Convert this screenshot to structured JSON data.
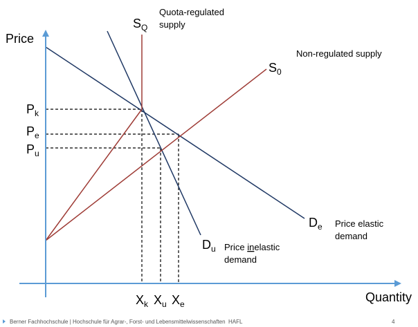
{
  "axes": {
    "y_label": "Price",
    "x_label": "Quantity"
  },
  "prices": [
    {
      "main": "P",
      "sub": "k"
    },
    {
      "main": "P",
      "sub": "e"
    },
    {
      "main": "P",
      "sub": "u"
    }
  ],
  "quantities": [
    {
      "main": "X",
      "sub": "k"
    },
    {
      "main": "X",
      "sub": "u"
    },
    {
      "main": "X",
      "sub": "e"
    }
  ],
  "curves": {
    "quota_supply": {
      "main": "S",
      "sub": "Q",
      "description": [
        "Quota-regulated",
        "supply"
      ]
    },
    "free_supply": {
      "main": "S",
      "sub": "0",
      "description": "Non-regulated  supply"
    },
    "elastic_demand": {
      "main": "D",
      "sub": "e",
      "description": [
        "Price elastic",
        "demand"
      ]
    },
    "inelastic_demand": {
      "main": "D",
      "sub": "u",
      "description_parts": [
        "Price ",
        "in",
        "elastic"
      ],
      "description_line2": "demand"
    }
  },
  "footer": {
    "text": "Berner Fachhochschule | Hochschule für Agrar-, Forst- und Lebensmittelwissenschaften  HAFL",
    "page": "4"
  }
}
